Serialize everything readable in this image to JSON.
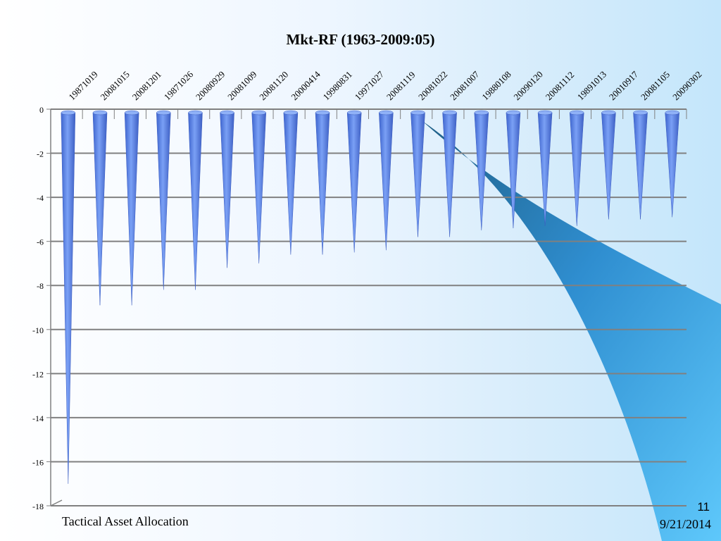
{
  "slide": {
    "footer_left": "Tactical Asset Allocation",
    "page_number": "11",
    "date": "9/21/2014"
  },
  "chart_data": {
    "type": "bar",
    "orientation": "vertical-cones",
    "title": "Mkt-RF (1963-2009:05)",
    "categories": [
      "19871019",
      "20081015",
      "20081201",
      "19871026",
      "20080929",
      "20081009",
      "20081120",
      "20000414",
      "19980831",
      "19971027",
      "20081119",
      "20081022",
      "20081007",
      "19880108",
      "20090120",
      "20081112",
      "19891013",
      "20010917",
      "20081105",
      "20090302"
    ],
    "series": [
      {
        "values": [
          -17.0,
          -8.9,
          -8.9,
          -8.2,
          -8.2,
          -7.2,
          -7.0,
          -6.6,
          -6.6,
          -6.5,
          -6.4,
          -5.8,
          -5.8,
          -5.5,
          -5.4,
          -5.3,
          -5.3,
          -5.0,
          -5.0,
          -4.9
        ]
      }
    ],
    "ylim": [
      -18,
      0
    ],
    "yticks": [
      "0",
      "-2",
      "-4",
      "-6",
      "-8",
      "-10",
      "-12",
      "-14",
      "-16",
      "-18"
    ],
    "grid": true,
    "bar_color": "#5b86ea"
  }
}
